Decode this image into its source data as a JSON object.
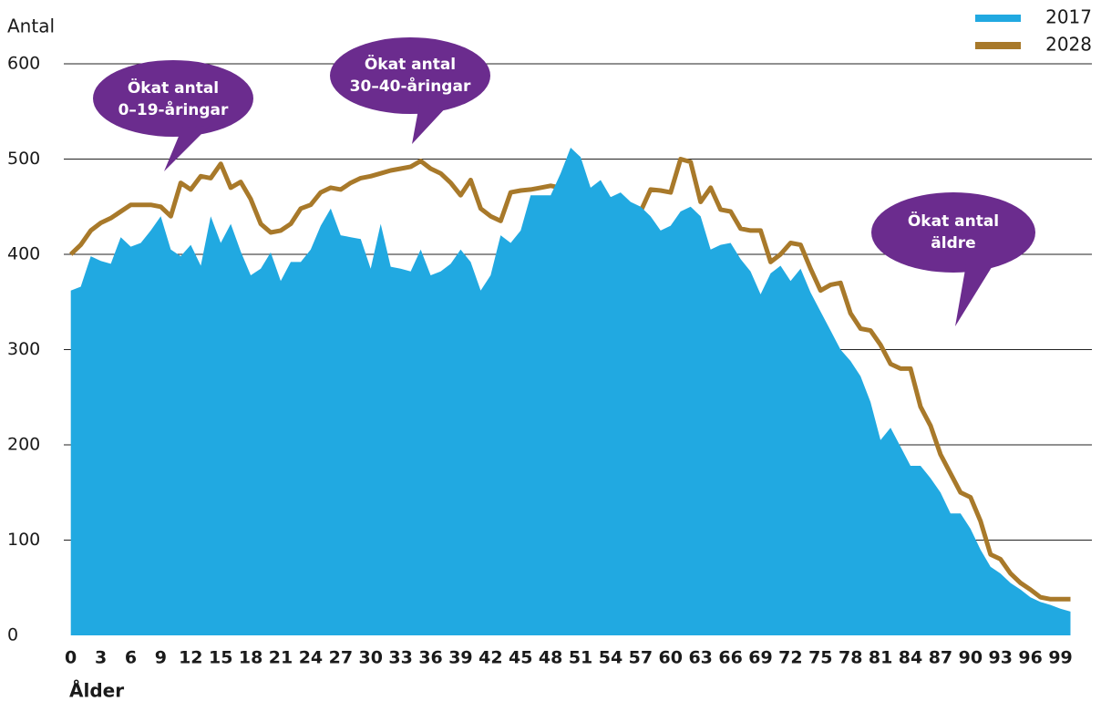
{
  "chart_data": {
    "type": "area-line",
    "y_label": "Antal",
    "x_label": "Ålder",
    "x": [
      0,
      1,
      2,
      3,
      4,
      5,
      6,
      7,
      8,
      9,
      10,
      11,
      12,
      13,
      14,
      15,
      16,
      17,
      18,
      19,
      20,
      21,
      22,
      23,
      24,
      25,
      26,
      27,
      28,
      29,
      30,
      31,
      32,
      33,
      34,
      35,
      36,
      37,
      38,
      39,
      40,
      41,
      42,
      43,
      44,
      45,
      46,
      47,
      48,
      49,
      50,
      51,
      52,
      53,
      54,
      55,
      56,
      57,
      58,
      59,
      60,
      61,
      62,
      63,
      64,
      65,
      66,
      67,
      68,
      69,
      70,
      71,
      72,
      73,
      74,
      75,
      76,
      77,
      78,
      79,
      80,
      81,
      82,
      83,
      84,
      85,
      86,
      87,
      88,
      89,
      90,
      91,
      92,
      93,
      94,
      95,
      96,
      97,
      98,
      99,
      100
    ],
    "series": [
      {
        "name": "2017",
        "color": "#21a9e1",
        "style": "area",
        "values": [
          362,
          366,
          398,
          393,
          390,
          418,
          408,
          412,
          425,
          440,
          405,
          398,
          410,
          388,
          440,
          412,
          432,
          403,
          378,
          385,
          402,
          372,
          392,
          392,
          405,
          430,
          448,
          420,
          418,
          416,
          385,
          432,
          387,
          385,
          382,
          405,
          378,
          382,
          390,
          405,
          392,
          362,
          378,
          420,
          412,
          425,
          462,
          462,
          462,
          485,
          512,
          502,
          470,
          478,
          460,
          465,
          455,
          450,
          440,
          425,
          430,
          445,
          450,
          440,
          405,
          410,
          412,
          395,
          382,
          358,
          380,
          388,
          372,
          385,
          360,
          340,
          320,
          300,
          288,
          272,
          245,
          205,
          218,
          198,
          178,
          178,
          165,
          150,
          128,
          128,
          112,
          90,
          72,
          65,
          55,
          48,
          40,
          35,
          32,
          28,
          25
        ]
      },
      {
        "name": "2028",
        "color": "#a8792a",
        "style": "line",
        "values": [
          400,
          410,
          425,
          433,
          438,
          445,
          452,
          452,
          452,
          450,
          440,
          475,
          468,
          482,
          480,
          495,
          470,
          476,
          458,
          432,
          423,
          425,
          432,
          448,
          452,
          465,
          470,
          468,
          475,
          480,
          482,
          485,
          488,
          490,
          492,
          498,
          490,
          485,
          475,
          462,
          478,
          448,
          440,
          435,
          465,
          467,
          468,
          470,
          472,
          470,
          468,
          465,
          462,
          460,
          458,
          455,
          450,
          445,
          468,
          467,
          465,
          500,
          497,
          455,
          470,
          447,
          445,
          427,
          425,
          425,
          392,
          400,
          412,
          410,
          385,
          362,
          368,
          370,
          338,
          322,
          320,
          305,
          285,
          280,
          280,
          240,
          220,
          190,
          170,
          150,
          145,
          120,
          85,
          80,
          65,
          55,
          48,
          40,
          38,
          38,
          38
        ]
      }
    ],
    "xlim": [
      -0.7,
      100.5
    ],
    "ylim": [
      0,
      600
    ],
    "xticks": [
      0,
      3,
      6,
      9,
      12,
      15,
      18,
      21,
      24,
      27,
      30,
      33,
      36,
      39,
      42,
      45,
      48,
      51,
      54,
      57,
      60,
      63,
      66,
      69,
      72,
      75,
      78,
      81,
      84,
      87,
      90,
      93,
      96,
      99
    ],
    "yticks": [
      0,
      100,
      200,
      300,
      400,
      500,
      600
    ],
    "grid": true,
    "legend": "top-right",
    "annotations": [
      {
        "lines": [
          "Ökat antal",
          "0–19-åringar"
        ]
      },
      {
        "lines": [
          "Ökat antal",
          "30–40-åringar"
        ]
      },
      {
        "lines": [
          "Ökat antal",
          "äldre"
        ]
      }
    ]
  }
}
